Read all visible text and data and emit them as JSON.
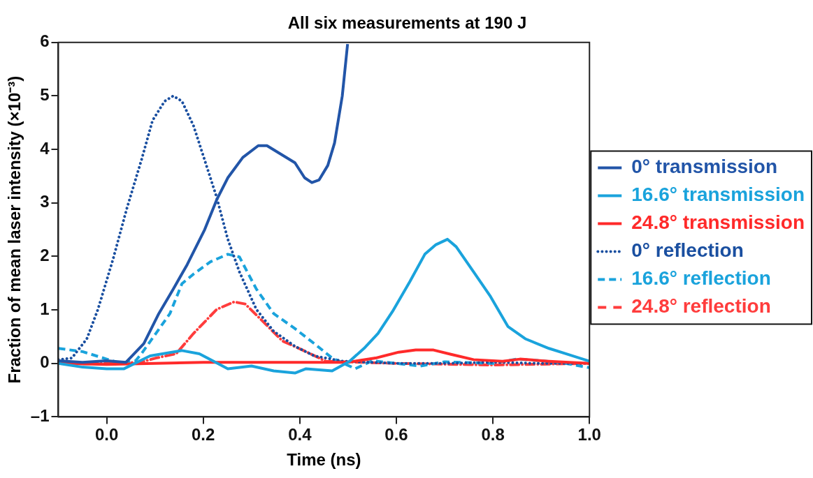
{
  "chart_data": {
    "type": "line",
    "title": "All six measurements at 190 J",
    "xlabel": "Time (ns)",
    "ylabel": "Fraction of mean laser intensity (×10⁻³)",
    "xlim": [
      -0.1,
      1.0
    ],
    "xticks": [
      {
        "value": 0,
        "label": "0.0"
      },
      {
        "value": 0.2,
        "label": "0.2"
      },
      {
        "value": 0.4,
        "label": "0.4"
      },
      {
        "value": 0.6,
        "label": "0.6"
      },
      {
        "value": 0.8,
        "label": "0.8"
      },
      {
        "value": 1.0,
        "label": "1.0"
      }
    ],
    "ylim": [
      -1,
      6
    ],
    "yticks": [
      {
        "value": -1,
        "label": "–1"
      },
      0,
      1,
      2,
      3,
      4,
      5,
      6
    ],
    "grid": false,
    "legend": "right",
    "marker": "none",
    "series": [
      {
        "name": "0° transmission",
        "color": "#2255a8",
        "line_style": "solid",
        "x": [
          -0.1,
          -0.05,
          0.0,
          0.04,
          0.077,
          0.108,
          0.138,
          0.167,
          0.203,
          0.228,
          0.251,
          0.282,
          0.314,
          0.332,
          0.39,
          0.41,
          0.425,
          0.44,
          0.458,
          0.472,
          0.488,
          0.499
        ],
        "values": [
          0.05,
          0.02,
          0.05,
          0.02,
          0.37,
          0.93,
          1.39,
          1.85,
          2.5,
          3.06,
          3.47,
          3.85,
          4.07,
          4.07,
          3.75,
          3.47,
          3.38,
          3.43,
          3.7,
          4.12,
          5.0,
          5.97
        ]
      },
      {
        "name": "16.6° transmission",
        "color": "#1aa3dc",
        "line_style": "solid",
        "x": [
          -0.1,
          -0.05,
          0.0,
          0.036,
          0.09,
          0.156,
          0.192,
          0.251,
          0.3,
          0.346,
          0.39,
          0.413,
          0.467,
          0.503,
          0.533,
          0.562,
          0.592,
          0.628,
          0.659,
          0.682,
          0.706,
          0.724,
          0.76,
          0.795,
          0.831,
          0.867,
          0.916,
          0.951,
          1.0
        ],
        "values": [
          0.0,
          -0.07,
          -0.1,
          -0.1,
          0.14,
          0.24,
          0.18,
          -0.1,
          -0.05,
          -0.14,
          -0.18,
          -0.1,
          -0.14,
          0.04,
          0.28,
          0.56,
          0.97,
          1.53,
          2.04,
          2.22,
          2.32,
          2.18,
          1.71,
          1.25,
          0.69,
          0.46,
          0.28,
          0.18,
          0.04
        ]
      },
      {
        "name": "24.8° transmission",
        "color": "#ff2a2a",
        "line_style": "solid",
        "x": [
          -0.1,
          0.0,
          0.2,
          0.5,
          0.557,
          0.605,
          0.64,
          0.677,
          0.713,
          0.76,
          0.82,
          0.856,
          0.916,
          1.0
        ],
        "values": [
          0.0,
          -0.02,
          0.02,
          0.02,
          0.1,
          0.21,
          0.25,
          0.25,
          0.17,
          0.07,
          0.04,
          0.08,
          0.04,
          0.0
        ]
      },
      {
        "name": "0° reflection",
        "color": "#1a4fa0",
        "line_style": "dotted",
        "x": [
          -0.1,
          -0.072,
          -0.041,
          -0.018,
          0.013,
          0.041,
          0.072,
          0.095,
          0.12,
          0.138,
          0.156,
          0.18,
          0.203,
          0.228,
          0.251,
          0.275,
          0.31,
          0.346,
          0.39,
          0.43,
          0.49,
          0.6,
          0.7,
          0.8,
          0.9,
          1.0
        ],
        "values": [
          0.07,
          0.1,
          0.46,
          1.01,
          1.94,
          2.87,
          3.8,
          4.54,
          4.9,
          5.0,
          4.9,
          4.44,
          3.8,
          3.1,
          2.32,
          1.71,
          1.01,
          0.6,
          0.32,
          0.14,
          0.04,
          0.0,
          0.0,
          0.02,
          0.0,
          0.0
        ]
      },
      {
        "name": "16.6° reflection",
        "color": "#1aa3dc",
        "line_style": "dashed",
        "x": [
          -0.1,
          -0.05,
          0.0,
          0.03,
          0.06,
          0.072,
          0.102,
          0.131,
          0.156,
          0.18,
          0.215,
          0.251,
          0.275,
          0.31,
          0.346,
          0.39,
          0.43,
          0.467,
          0.515,
          0.55,
          0.6,
          0.65,
          0.7,
          0.8,
          0.85,
          0.9,
          0.95,
          1.0
        ],
        "values": [
          0.28,
          0.22,
          0.08,
          0.0,
          0.05,
          0.18,
          0.56,
          0.93,
          1.49,
          1.67,
          1.9,
          2.04,
          1.99,
          1.39,
          0.93,
          0.65,
          0.37,
          0.1,
          -0.1,
          0.05,
          0.0,
          -0.05,
          0.03,
          0.0,
          0.08,
          0.05,
          0.0,
          -0.08
        ]
      },
      {
        "name": "24.8° reflection",
        "color": "#ff3c3c",
        "line_style": "dashdot",
        "x": [
          -0.1,
          0.0,
          0.07,
          0.102,
          0.144,
          0.18,
          0.228,
          0.264,
          0.287,
          0.323,
          0.364,
          0.408,
          0.454,
          0.6,
          0.8,
          1.0
        ],
        "values": [
          0.0,
          0.0,
          0.02,
          0.1,
          0.18,
          0.56,
          1.01,
          1.15,
          1.11,
          0.79,
          0.42,
          0.24,
          0.04,
          0.0,
          -0.03,
          0.0
        ]
      }
    ]
  }
}
